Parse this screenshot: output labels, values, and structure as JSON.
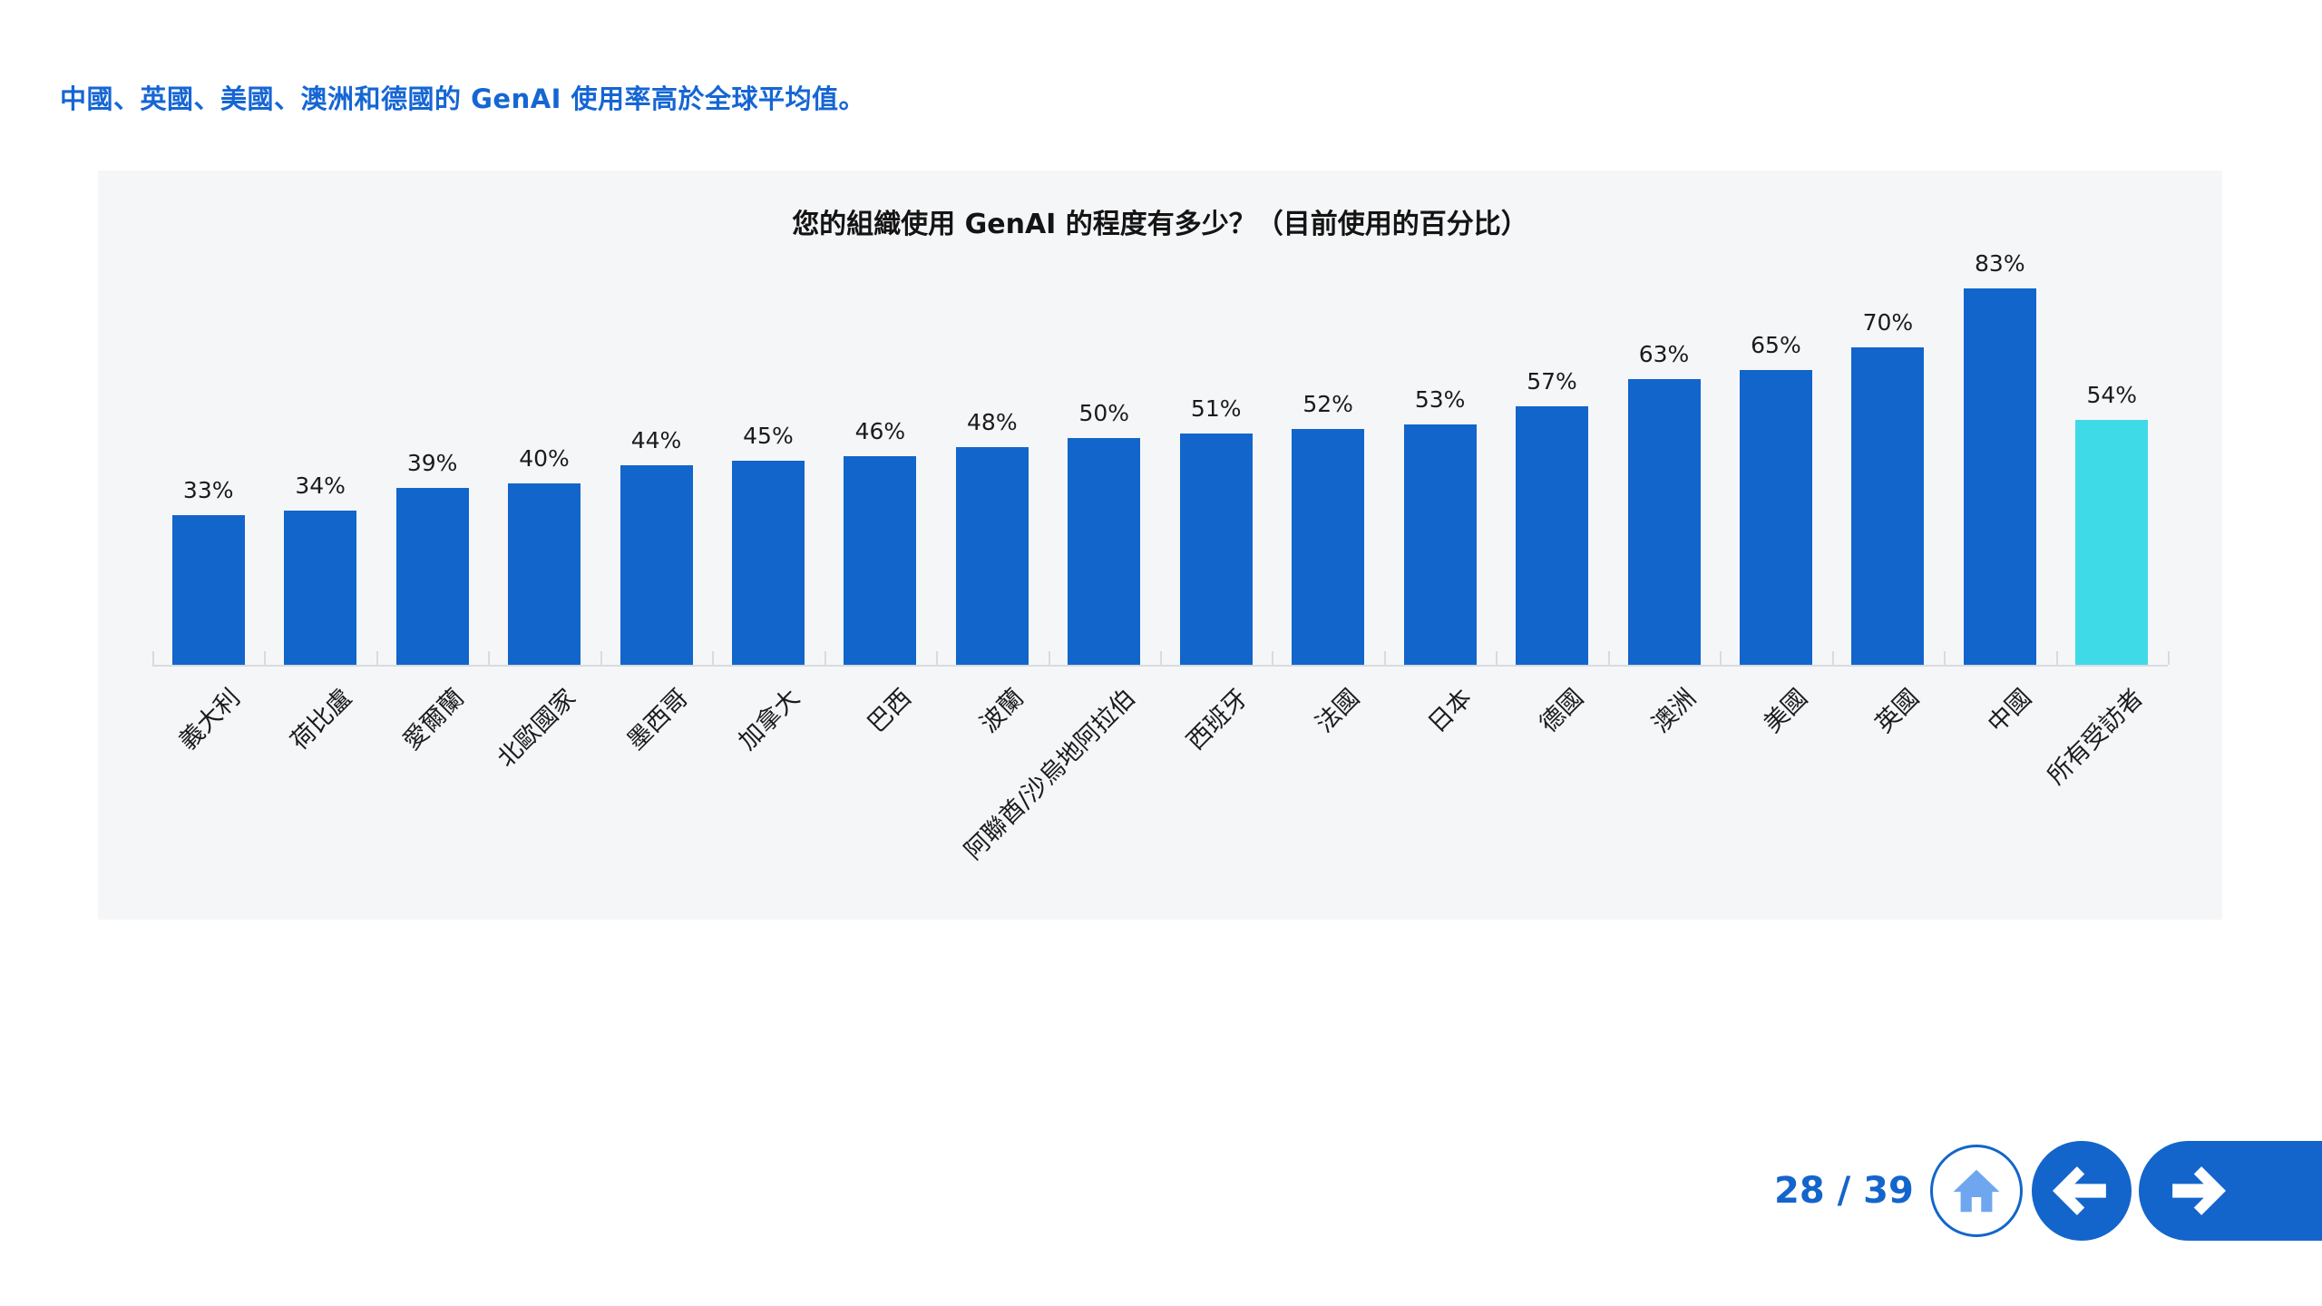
{
  "slide": {
    "headline": "中國、英國、美國、澳洲和德國的 GenAI 使用率高於全球平均值。"
  },
  "chart_data": {
    "type": "bar",
    "title": "您的組織使用 GenAI 的程度有多少？（目前使用的百分比）",
    "categories": [
      "義大利",
      "荷比盧",
      "愛爾蘭",
      "北歐國家",
      "墨西哥",
      "加拿大",
      "巴西",
      "波蘭",
      "阿聯酋/沙烏地阿拉伯",
      "西班牙",
      "法國",
      "日本",
      "德國",
      "澳洲",
      "美國",
      "英國",
      "中國",
      "所有受訪者"
    ],
    "values": [
      33,
      34,
      39,
      40,
      44,
      45,
      46,
      48,
      50,
      51,
      52,
      53,
      57,
      63,
      65,
      70,
      83,
      54
    ],
    "value_labels": [
      "33%",
      "34%",
      "39%",
      "40%",
      "44%",
      "45%",
      "46%",
      "48%",
      "50%",
      "51%",
      "52%",
      "53%",
      "57%",
      "63%",
      "65%",
      "70%",
      "83%",
      "54%"
    ],
    "highlight_index": 17,
    "xlabel": "",
    "ylabel": "",
    "ylim": [
      0,
      100
    ],
    "grid": false,
    "legend": false,
    "bar_color": "#1265CB",
    "highlight_color": "#3EDAE8",
    "background": "#F5F6F8"
  },
  "nav": {
    "page_indicator": "28 / 39",
    "home_icon": "home-icon",
    "prev_icon": "arrow-left-icon",
    "next_icon": "arrow-right-icon"
  },
  "colors": {
    "headline_blue": "#1566D4",
    "nav_blue": "#1365CB",
    "bar_blue": "#1265CB",
    "highlight_cyan": "#3EDAE8",
    "panel_bg": "#F5F6F8",
    "axis_gray": "#D8DBDF",
    "home_icon_fill": "#6EA7EF"
  }
}
